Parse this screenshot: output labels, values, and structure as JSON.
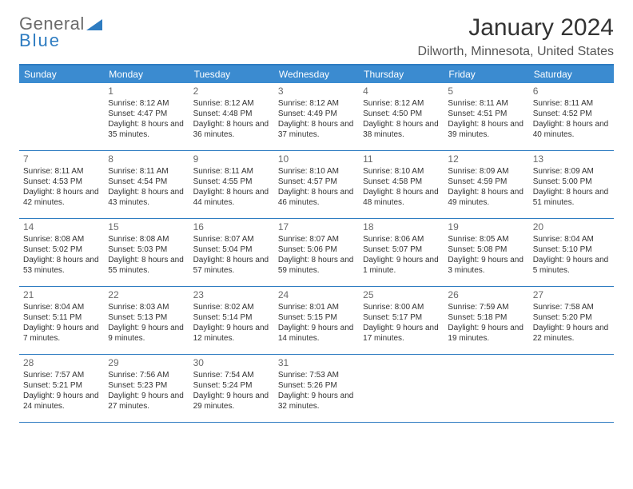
{
  "logo": {
    "line1": "General",
    "line2": "Blue"
  },
  "title": "January 2024",
  "location": "Dilworth, Minnesota, United States",
  "colors": {
    "header_bg": "#3b8bd0",
    "border": "#2e7cc1",
    "text": "#333333",
    "logo_gray": "#6b6b6b",
    "logo_blue": "#2e7cc1",
    "background": "#ffffff"
  },
  "weekdays": [
    "Sunday",
    "Monday",
    "Tuesday",
    "Wednesday",
    "Thursday",
    "Friday",
    "Saturday"
  ],
  "weeks": [
    [
      {
        "n": "",
        "sunrise": "",
        "sunset": "",
        "daylight": ""
      },
      {
        "n": "1",
        "sunrise": "Sunrise: 8:12 AM",
        "sunset": "Sunset: 4:47 PM",
        "daylight": "Daylight: 8 hours and 35 minutes."
      },
      {
        "n": "2",
        "sunrise": "Sunrise: 8:12 AM",
        "sunset": "Sunset: 4:48 PM",
        "daylight": "Daylight: 8 hours and 36 minutes."
      },
      {
        "n": "3",
        "sunrise": "Sunrise: 8:12 AM",
        "sunset": "Sunset: 4:49 PM",
        "daylight": "Daylight: 8 hours and 37 minutes."
      },
      {
        "n": "4",
        "sunrise": "Sunrise: 8:12 AM",
        "sunset": "Sunset: 4:50 PM",
        "daylight": "Daylight: 8 hours and 38 minutes."
      },
      {
        "n": "5",
        "sunrise": "Sunrise: 8:11 AM",
        "sunset": "Sunset: 4:51 PM",
        "daylight": "Daylight: 8 hours and 39 minutes."
      },
      {
        "n": "6",
        "sunrise": "Sunrise: 8:11 AM",
        "sunset": "Sunset: 4:52 PM",
        "daylight": "Daylight: 8 hours and 40 minutes."
      }
    ],
    [
      {
        "n": "7",
        "sunrise": "Sunrise: 8:11 AM",
        "sunset": "Sunset: 4:53 PM",
        "daylight": "Daylight: 8 hours and 42 minutes."
      },
      {
        "n": "8",
        "sunrise": "Sunrise: 8:11 AM",
        "sunset": "Sunset: 4:54 PM",
        "daylight": "Daylight: 8 hours and 43 minutes."
      },
      {
        "n": "9",
        "sunrise": "Sunrise: 8:11 AM",
        "sunset": "Sunset: 4:55 PM",
        "daylight": "Daylight: 8 hours and 44 minutes."
      },
      {
        "n": "10",
        "sunrise": "Sunrise: 8:10 AM",
        "sunset": "Sunset: 4:57 PM",
        "daylight": "Daylight: 8 hours and 46 minutes."
      },
      {
        "n": "11",
        "sunrise": "Sunrise: 8:10 AM",
        "sunset": "Sunset: 4:58 PM",
        "daylight": "Daylight: 8 hours and 48 minutes."
      },
      {
        "n": "12",
        "sunrise": "Sunrise: 8:09 AM",
        "sunset": "Sunset: 4:59 PM",
        "daylight": "Daylight: 8 hours and 49 minutes."
      },
      {
        "n": "13",
        "sunrise": "Sunrise: 8:09 AM",
        "sunset": "Sunset: 5:00 PM",
        "daylight": "Daylight: 8 hours and 51 minutes."
      }
    ],
    [
      {
        "n": "14",
        "sunrise": "Sunrise: 8:08 AM",
        "sunset": "Sunset: 5:02 PM",
        "daylight": "Daylight: 8 hours and 53 minutes."
      },
      {
        "n": "15",
        "sunrise": "Sunrise: 8:08 AM",
        "sunset": "Sunset: 5:03 PM",
        "daylight": "Daylight: 8 hours and 55 minutes."
      },
      {
        "n": "16",
        "sunrise": "Sunrise: 8:07 AM",
        "sunset": "Sunset: 5:04 PM",
        "daylight": "Daylight: 8 hours and 57 minutes."
      },
      {
        "n": "17",
        "sunrise": "Sunrise: 8:07 AM",
        "sunset": "Sunset: 5:06 PM",
        "daylight": "Daylight: 8 hours and 59 minutes."
      },
      {
        "n": "18",
        "sunrise": "Sunrise: 8:06 AM",
        "sunset": "Sunset: 5:07 PM",
        "daylight": "Daylight: 9 hours and 1 minute."
      },
      {
        "n": "19",
        "sunrise": "Sunrise: 8:05 AM",
        "sunset": "Sunset: 5:08 PM",
        "daylight": "Daylight: 9 hours and 3 minutes."
      },
      {
        "n": "20",
        "sunrise": "Sunrise: 8:04 AM",
        "sunset": "Sunset: 5:10 PM",
        "daylight": "Daylight: 9 hours and 5 minutes."
      }
    ],
    [
      {
        "n": "21",
        "sunrise": "Sunrise: 8:04 AM",
        "sunset": "Sunset: 5:11 PM",
        "daylight": "Daylight: 9 hours and 7 minutes."
      },
      {
        "n": "22",
        "sunrise": "Sunrise: 8:03 AM",
        "sunset": "Sunset: 5:13 PM",
        "daylight": "Daylight: 9 hours and 9 minutes."
      },
      {
        "n": "23",
        "sunrise": "Sunrise: 8:02 AM",
        "sunset": "Sunset: 5:14 PM",
        "daylight": "Daylight: 9 hours and 12 minutes."
      },
      {
        "n": "24",
        "sunrise": "Sunrise: 8:01 AM",
        "sunset": "Sunset: 5:15 PM",
        "daylight": "Daylight: 9 hours and 14 minutes."
      },
      {
        "n": "25",
        "sunrise": "Sunrise: 8:00 AM",
        "sunset": "Sunset: 5:17 PM",
        "daylight": "Daylight: 9 hours and 17 minutes."
      },
      {
        "n": "26",
        "sunrise": "Sunrise: 7:59 AM",
        "sunset": "Sunset: 5:18 PM",
        "daylight": "Daylight: 9 hours and 19 minutes."
      },
      {
        "n": "27",
        "sunrise": "Sunrise: 7:58 AM",
        "sunset": "Sunset: 5:20 PM",
        "daylight": "Daylight: 9 hours and 22 minutes."
      }
    ],
    [
      {
        "n": "28",
        "sunrise": "Sunrise: 7:57 AM",
        "sunset": "Sunset: 5:21 PM",
        "daylight": "Daylight: 9 hours and 24 minutes."
      },
      {
        "n": "29",
        "sunrise": "Sunrise: 7:56 AM",
        "sunset": "Sunset: 5:23 PM",
        "daylight": "Daylight: 9 hours and 27 minutes."
      },
      {
        "n": "30",
        "sunrise": "Sunrise: 7:54 AM",
        "sunset": "Sunset: 5:24 PM",
        "daylight": "Daylight: 9 hours and 29 minutes."
      },
      {
        "n": "31",
        "sunrise": "Sunrise: 7:53 AM",
        "sunset": "Sunset: 5:26 PM",
        "daylight": "Daylight: 9 hours and 32 minutes."
      },
      {
        "n": "",
        "sunrise": "",
        "sunset": "",
        "daylight": ""
      },
      {
        "n": "",
        "sunrise": "",
        "sunset": "",
        "daylight": ""
      },
      {
        "n": "",
        "sunrise": "",
        "sunset": "",
        "daylight": ""
      }
    ]
  ]
}
